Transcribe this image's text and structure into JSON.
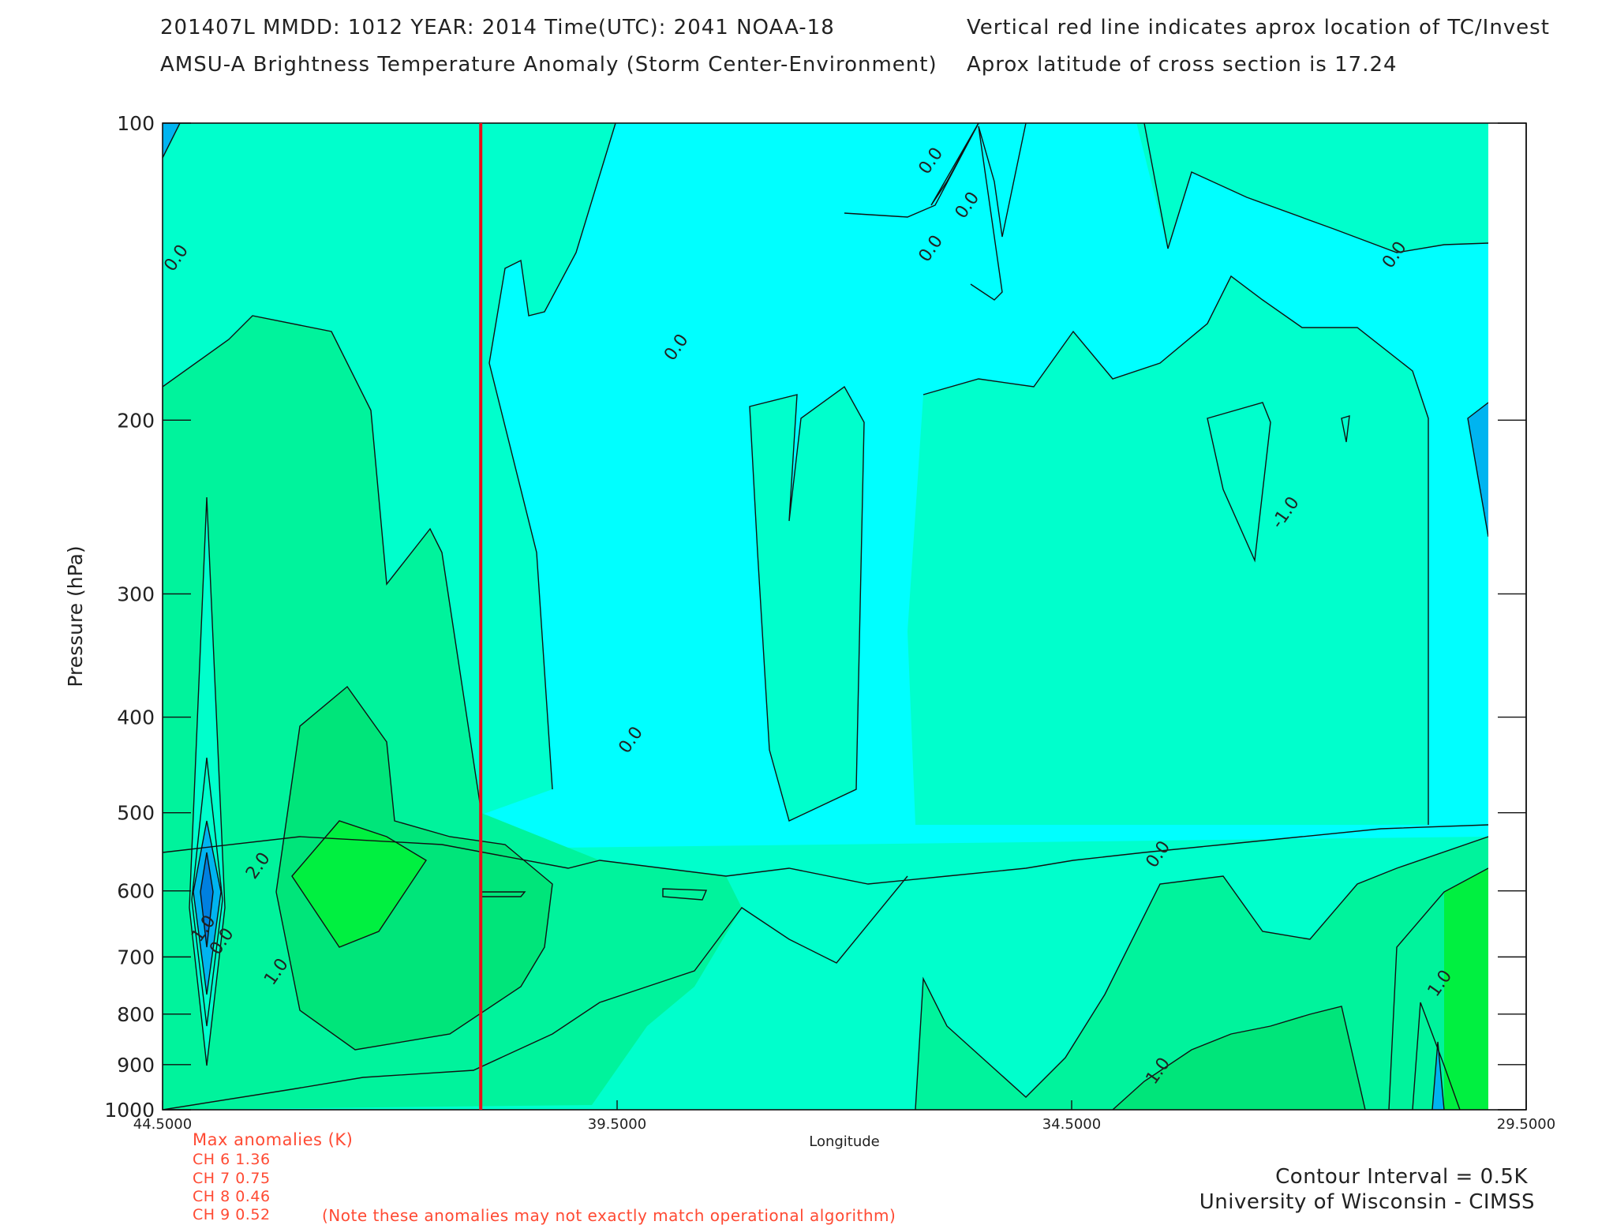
{
  "header": {
    "line1_left": "201407L  MMDD: 1012 YEAR: 2014 Time(UTC): 2041 NOAA-18",
    "line2_left": "AMSU-A Brightness Temperature Anomaly (Storm Center-Environment)",
    "line1_right": "Vertical red line indicates aprox location of TC/Invest",
    "line2_right": "Aprox latitude of cross section is 17.24"
  },
  "chart_data": {
    "type": "heatmap",
    "xlabel": "Longitude",
    "ylabel": "Pressure (hPa)",
    "xlim": [
      44.5,
      29.5
    ],
    "ylim": [
      100,
      1000
    ],
    "y_scale": "log",
    "x_ticks": [
      44.5,
      39.5,
      34.5,
      29.5
    ],
    "x_tick_labels": [
      "44.5000",
      "39.5000",
      "34.5000",
      "29.5000"
    ],
    "y_ticks": [
      100,
      200,
      300,
      400,
      500,
      600,
      700,
      800,
      900,
      1000
    ],
    "y_tick_labels": [
      "100",
      "200",
      "300",
      "400",
      "500",
      "600",
      "700",
      "800",
      "900",
      "1000"
    ],
    "contour_interval_K": 0.5,
    "storm_longitude": 41.0,
    "storm_marker_color": "#e8101a",
    "contour_labels": [
      {
        "text": "0.0",
        "lon": 44.3,
        "p": 138
      },
      {
        "text": "0.0",
        "lon": 38.8,
        "p": 170
      },
      {
        "text": "0.0",
        "lon": 36.0,
        "p": 110
      },
      {
        "text": "0.0",
        "lon": 35.6,
        "p": 122
      },
      {
        "text": "0.0",
        "lon": 36.0,
        "p": 135
      },
      {
        "text": "0.0",
        "lon": 30.9,
        "p": 137
      },
      {
        "text": "0.0",
        "lon": 39.3,
        "p": 425
      },
      {
        "text": "0.0",
        "lon": 33.5,
        "p": 555
      },
      {
        "text": "-1.0",
        "lon": 32.1,
        "p": 250
      },
      {
        "text": "2.0",
        "lon": 43.4,
        "p": 570
      },
      {
        "text": "1.0",
        "lon": 44.0,
        "p": 660
      },
      {
        "text": "0.0",
        "lon": 43.8,
        "p": 680
      },
      {
        "text": "1.0",
        "lon": 43.2,
        "p": 730
      },
      {
        "text": "1.0",
        "lon": 30.4,
        "p": 750
      },
      {
        "text": "1.0",
        "lon": 33.5,
        "p": 920
      }
    ]
  },
  "max_anomalies": {
    "title": "Max anomalies (K)",
    "rows": [
      "CH 6  1.36",
      "CH 7  0.75",
      "CH 8  0.46",
      "CH 9  0.52"
    ],
    "note": "(Note these anomalies may not exactly match operational algorithm)"
  },
  "footer": {
    "contour": "Contour Interval = 0.5K",
    "credit": "University of Wisconsin - CIMSS"
  },
  "colors": {
    "cyan": "#00ffff",
    "aqua_green": "#00ffcc",
    "light_green": "#00f39c",
    "green": "#00e57a",
    "bright_green": "#00f040",
    "blue": "#00b4f0",
    "red_line": "#e8101a",
    "note_text": "#ff4a33"
  }
}
